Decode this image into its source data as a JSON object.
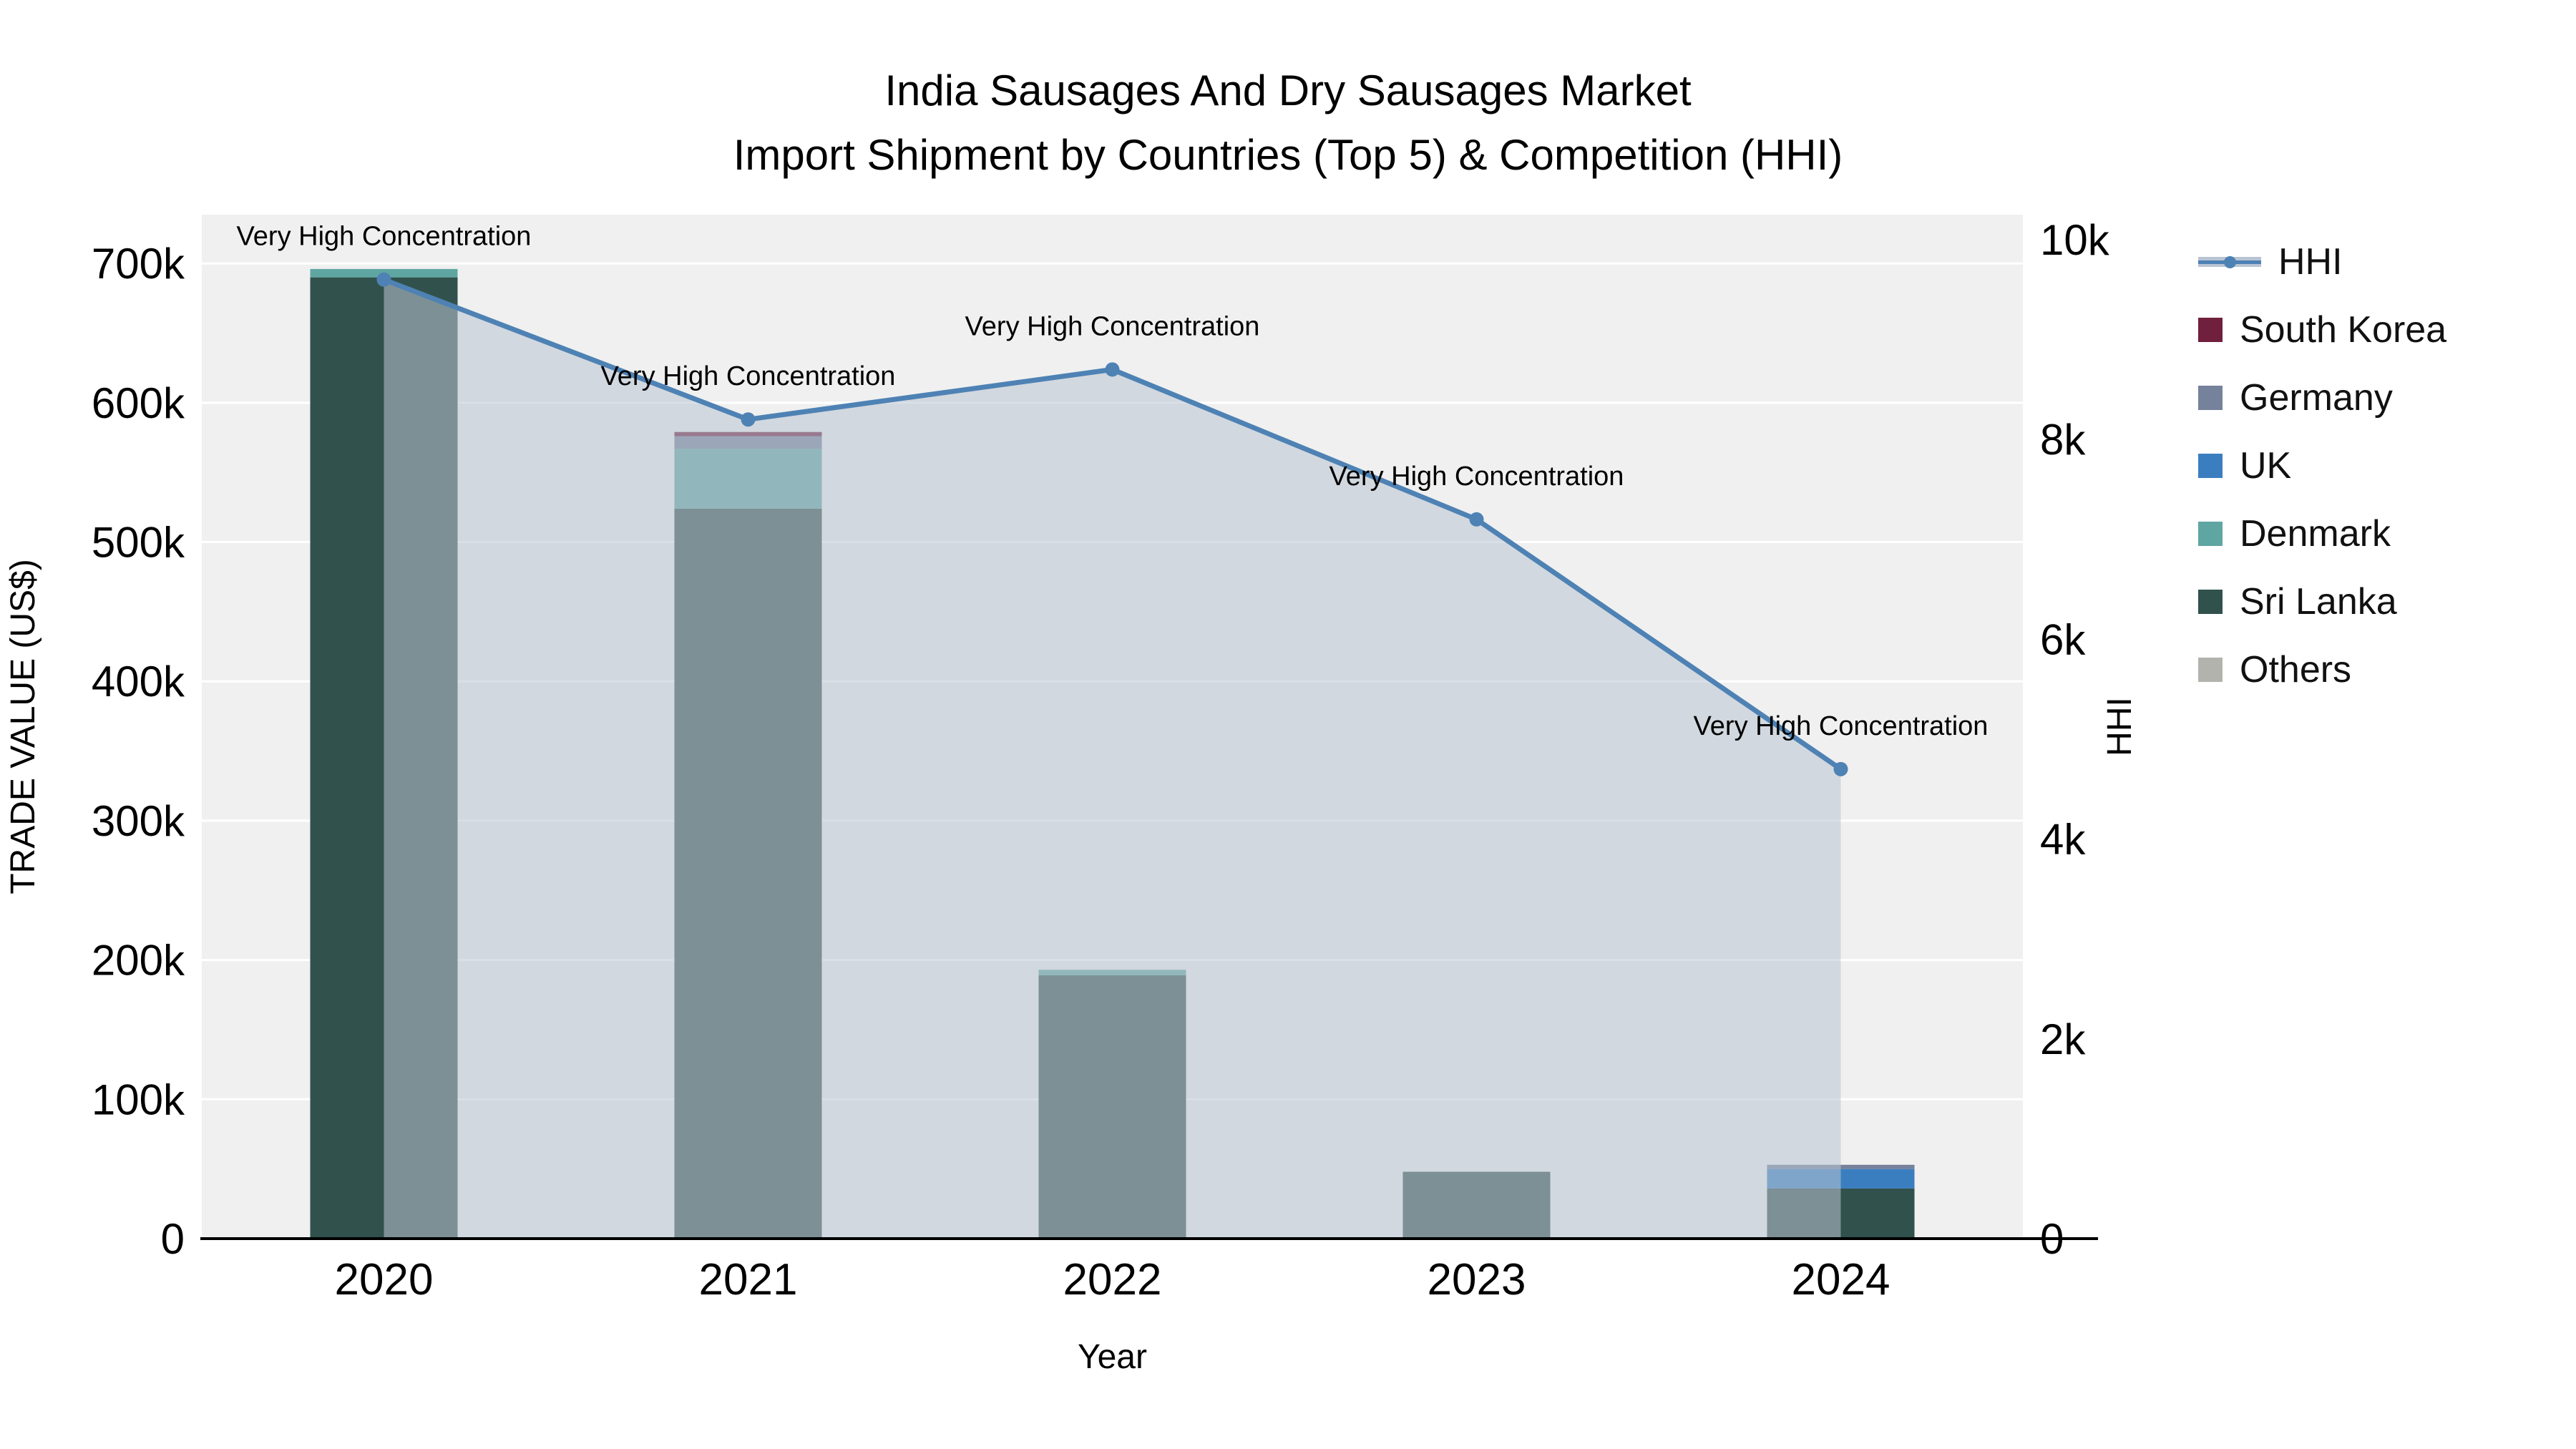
{
  "title": {
    "line1": "India Sausages And Dry Sausages Market",
    "line2": "Import Shipment by Countries (Top 5) & Competition (HHI)"
  },
  "chart_data": {
    "type": "bar",
    "subtype": "stacked-bars-with-hhi-line-area",
    "categories": [
      "2020",
      "2021",
      "2022",
      "2023",
      "2024"
    ],
    "xlabel": "Year",
    "y_left": {
      "label": "TRADE VALUE (US$)",
      "ticks": [
        0,
        100000,
        200000,
        300000,
        400000,
        500000,
        600000,
        700000
      ],
      "tick_labels": [
        "0",
        "100k",
        "200k",
        "300k",
        "400k",
        "500k",
        "600k",
        "700k"
      ],
      "range": [
        0,
        735000
      ]
    },
    "y_right": {
      "label": "HHI",
      "ticks": [
        0,
        2000,
        4000,
        6000,
        8000,
        10000
      ],
      "tick_labels": [
        "0",
        "2k",
        "4k",
        "6k",
        "8k",
        "10k"
      ],
      "range": [
        0,
        10250
      ]
    },
    "bar_series": [
      {
        "name": "South Korea",
        "color": "#701f3d",
        "values": [
          0,
          3000,
          0,
          0,
          0
        ]
      },
      {
        "name": "Germany",
        "color": "#76819b",
        "values": [
          0,
          9000,
          0,
          0,
          3000
        ]
      },
      {
        "name": "UK",
        "color": "#3b7ec0",
        "values": [
          0,
          0,
          0,
          0,
          14000
        ]
      },
      {
        "name": "Denmark",
        "color": "#5fa6a3",
        "values": [
          6000,
          43000,
          4000,
          0,
          0
        ]
      },
      {
        "name": "Sri Lanka",
        "color": "#31514c",
        "values": [
          690000,
          524000,
          189000,
          48000,
          36000
        ]
      },
      {
        "name": "Others",
        "color": "#b3b3ae",
        "values": [
          0,
          0,
          0,
          0,
          0
        ]
      }
    ],
    "stack_order_bottom_to_top": [
      "Sri Lanka",
      "Denmark",
      "UK",
      "Germany",
      "South Korea",
      "Others"
    ],
    "line_series": {
      "name": "HHI",
      "axis": "right",
      "color": "#4e82b4",
      "area_color": "#b9c4d2",
      "area_opacity": 0.55,
      "values": [
        9600,
        8200,
        8700,
        7200,
        4700
      ]
    },
    "annotations": [
      {
        "x": "2020",
        "text": "Very High Concentration"
      },
      {
        "x": "2021",
        "text": "Very High Concentration"
      },
      {
        "x": "2022",
        "text": "Very High Concentration"
      },
      {
        "x": "2023",
        "text": "Very High Concentration"
      },
      {
        "x": "2024",
        "text": "Very High Concentration"
      }
    ],
    "legend_position": "right",
    "grid": "horizontal",
    "plot_bg": "#f0f0f0",
    "grid_color": "#ffffff"
  },
  "legend": {
    "items": [
      {
        "label": "HHI",
        "type": "line",
        "color": "#4e82b4"
      },
      {
        "label": "South Korea",
        "type": "square",
        "color": "#701f3d"
      },
      {
        "label": "Germany",
        "type": "square",
        "color": "#76819b"
      },
      {
        "label": "UK",
        "type": "square",
        "color": "#3b7ec0"
      },
      {
        "label": "Denmark",
        "type": "square",
        "color": "#5fa6a3"
      },
      {
        "label": "Sri Lanka",
        "type": "square",
        "color": "#31514c"
      },
      {
        "label": "Others",
        "type": "square",
        "color": "#b3b3ae"
      }
    ]
  }
}
